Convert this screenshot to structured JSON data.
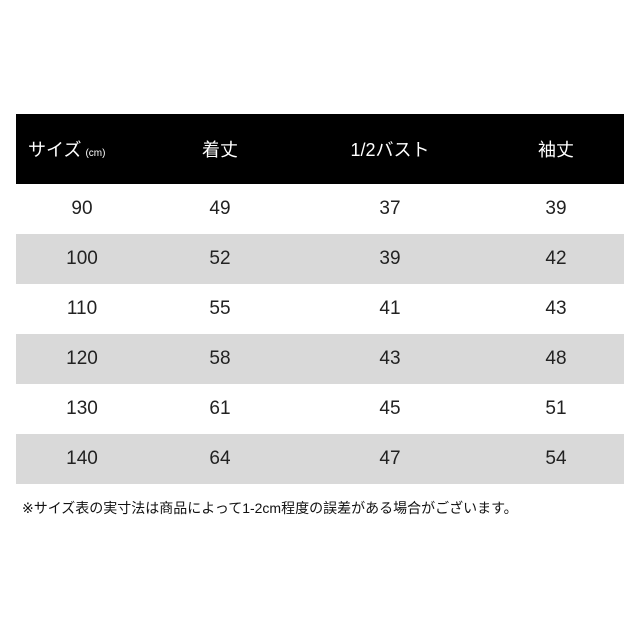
{
  "table": {
    "headers": [
      "サイズ",
      "着丈",
      "1/2バスト",
      "袖丈"
    ],
    "size_unit": "(cm)",
    "rows": [
      [
        "90",
        "49",
        "37",
        "39"
      ],
      [
        "100",
        "52",
        "39",
        "42"
      ],
      [
        "110",
        "55",
        "41",
        "43"
      ],
      [
        "120",
        "58",
        "43",
        "48"
      ],
      [
        "130",
        "61",
        "45",
        "51"
      ],
      [
        "140",
        "64",
        "47",
        "54"
      ]
    ],
    "colors": {
      "header_bg": "#000000",
      "header_text": "#ffffff",
      "alt_row_bg": "#d9d9d9"
    }
  },
  "note": "※サイズ表の実寸法は商品によって1-2cm程度の誤差がある場合がございます。"
}
